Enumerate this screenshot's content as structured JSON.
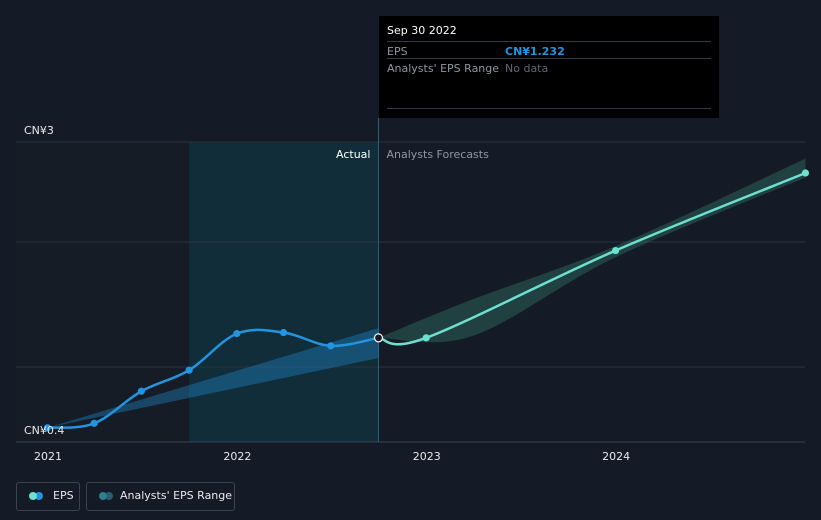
{
  "chart_data": {
    "type": "line",
    "y_axis": {
      "top_label": "CN¥3",
      "bottom_label": "CN¥0.4",
      "ylim": [
        0.4,
        3.0
      ]
    },
    "x_axis": {
      "tick_labels": [
        "2021",
        "2022",
        "2023",
        "2024"
      ]
    },
    "region_labels": {
      "actual": "Actual",
      "forecast": "Analysts Forecasts"
    },
    "series": [
      {
        "name": "EPS",
        "color": "#2394df",
        "points": [
          {
            "x": "2020-12-31",
            "y": 0.42
          },
          {
            "x": "2021-03-31",
            "y": 0.46
          },
          {
            "x": "2021-06-30",
            "y": 0.75
          },
          {
            "x": "2021-09-30",
            "y": 0.94
          },
          {
            "x": "2021-12-31",
            "y": 1.27
          },
          {
            "x": "2022-03-31",
            "y": 1.28
          },
          {
            "x": "2022-06-30",
            "y": 1.16
          },
          {
            "x": "2022-09-30",
            "y": 1.232
          }
        ]
      },
      {
        "name": "EPS Forecast",
        "color": "#6de0cf",
        "points": [
          {
            "x": "2022-09-30",
            "y": 1.232
          },
          {
            "x": "2022-12-31",
            "y": 1.232
          },
          {
            "x": "2023-12-31",
            "y": 2.02
          },
          {
            "x": "2024-12-31",
            "y": 2.72
          }
        ]
      }
    ],
    "analyst_range_past": [
      {
        "x": "2020-12-31",
        "low": 0.42,
        "high": 0.42
      },
      {
        "x": "2022-09-30",
        "low": 1.05,
        "high": 1.32
      }
    ],
    "analyst_range_forecast": [
      {
        "x": "2022-09-30",
        "low": 1.232,
        "high": 1.232
      },
      {
        "x": "2023-03-31",
        "low": 1.25,
        "high": 1.58
      },
      {
        "x": "2023-12-31",
        "low": 1.96,
        "high": 2.06
      },
      {
        "x": "2024-12-31",
        "low": 2.68,
        "high": 2.85
      }
    ],
    "grid": true
  },
  "tooltip": {
    "date": "Sep 30 2022",
    "eps_label": "EPS",
    "eps_value": "CN¥1.232",
    "range_label": "Analysts' EPS Range",
    "range_value": "No data"
  },
  "legend": {
    "eps_label": "EPS",
    "range_label": "Analysts' EPS Range"
  },
  "colors": {
    "background": "#151b26",
    "eps": "#2394df",
    "forecast": "#6de0cf",
    "grid": "#2b3240"
  }
}
